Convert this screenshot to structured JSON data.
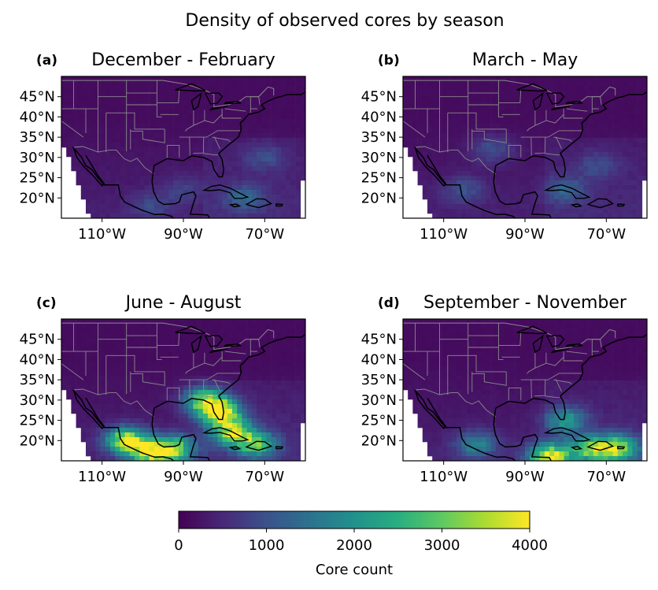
{
  "figure": {
    "title": "Density of observed cores by season"
  },
  "chart_data": [
    {
      "type": "heatmap",
      "panel_label": "(a)",
      "title": "December - February",
      "lon_ticks": [
        "110°W",
        "90°W",
        "70°W"
      ],
      "lat_ticks": [
        "20°N",
        "25°N",
        "30°N",
        "35°N",
        "40°N",
        "45°N"
      ],
      "xlim": [
        -120,
        -60
      ],
      "ylim": [
        15,
        50
      ],
      "hotspots": [
        {
          "lon": -75,
          "lat": 20,
          "value": 900
        },
        {
          "lon": -90,
          "lat": 22,
          "value": 500
        },
        {
          "lon": -98,
          "lat": 18,
          "value": 550
        },
        {
          "lon": -70,
          "lat": 30,
          "value": 650
        }
      ]
    },
    {
      "type": "heatmap",
      "panel_label": "(b)",
      "title": "March - May",
      "lon_ticks": [
        "110°W",
        "90°W",
        "70°W"
      ],
      "lat_ticks": [
        "20°N",
        "25°N",
        "30°N",
        "35°N",
        "40°N",
        "45°N"
      ],
      "xlim": [
        -120,
        -60
      ],
      "ylim": [
        15,
        50
      ],
      "hotspots": [
        {
          "lon": -105,
          "lat": 22,
          "value": 700
        },
        {
          "lon": -98,
          "lat": 32,
          "value": 800
        },
        {
          "lon": -80,
          "lat": 22,
          "value": 900
        },
        {
          "lon": -72,
          "lat": 28,
          "value": 600
        }
      ]
    },
    {
      "type": "heatmap",
      "panel_label": "(c)",
      "title": "June - August",
      "lon_ticks": [
        "110°W",
        "90°W",
        "70°W"
      ],
      "lat_ticks": [
        "20°N",
        "25°N",
        "30°N",
        "35°N",
        "40°N",
        "45°N"
      ],
      "xlim": [
        -120,
        -60
      ],
      "ylim": [
        15,
        50
      ],
      "hotspots": [
        {
          "lon": -104,
          "lat": 20,
          "value": 3400
        },
        {
          "lon": -98,
          "lat": 17,
          "value": 3100
        },
        {
          "lon": -81,
          "lat": 27,
          "value": 3700
        },
        {
          "lon": -78,
          "lat": 22,
          "value": 3000
        },
        {
          "lon": -92,
          "lat": 18,
          "value": 2700
        },
        {
          "lon": -85,
          "lat": 30,
          "value": 2600
        },
        {
          "lon": -72,
          "lat": 19,
          "value": 2400
        }
      ]
    },
    {
      "type": "heatmap",
      "panel_label": "(d)",
      "title": "September - November",
      "lon_ticks": [
        "110°W",
        "90°W",
        "70°W"
      ],
      "lat_ticks": [
        "20°N",
        "25°N",
        "30°N",
        "35°N",
        "40°N",
        "45°N"
      ],
      "xlim": [
        -120,
        -60
      ],
      "ylim": [
        15,
        50
      ],
      "hotspots": [
        {
          "lon": -84,
          "lat": 16,
          "value": 3600
        },
        {
          "lon": -74,
          "lat": 18,
          "value": 2600
        },
        {
          "lon": -67,
          "lat": 18,
          "value": 3000
        },
        {
          "lon": -102,
          "lat": 19,
          "value": 1500
        },
        {
          "lon": -80,
          "lat": 25,
          "value": 1800
        }
      ]
    }
  ],
  "colorbar": {
    "label": "Core count",
    "ticks": [
      0,
      1000,
      2000,
      3000,
      4000
    ],
    "tick_labels": [
      "0",
      "1000",
      "2000",
      "3000",
      "4000"
    ],
    "range": [
      0,
      4000
    ],
    "colormap": "viridis"
  }
}
